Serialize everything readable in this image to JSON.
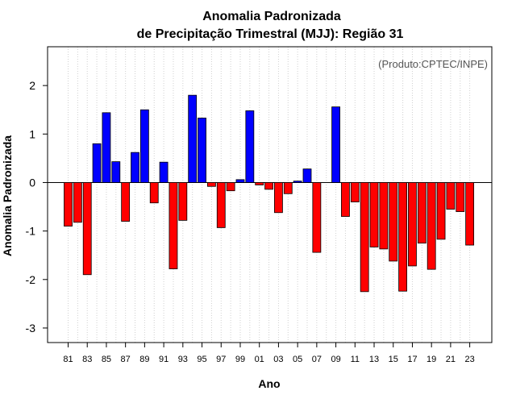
{
  "chart_data": {
    "type": "bar",
    "title": "Anomalia Padronizada",
    "subtitle": "de Precipitação Trimestral (MJJ): Região 31",
    "xlabel": "Ano",
    "ylabel": "Anomalia Padronizada",
    "credit": "(Produto:CPTEC/INPE)",
    "ylim": [
      -3.3,
      2.8
    ],
    "yticks": [
      -3,
      -2,
      -1,
      0,
      1,
      2
    ],
    "ytick_labels": [
      "-3",
      "-2",
      "-1",
      "0",
      "1",
      "2"
    ],
    "grid": "vertical dotted",
    "positive_color": "#0000ff",
    "negative_color": "#ff0000",
    "categories": [
      "81",
      "82",
      "83",
      "84",
      "85",
      "86",
      "87",
      "88",
      "89",
      "90",
      "91",
      "92",
      "93",
      "94",
      "95",
      "96",
      "97",
      "98",
      "99",
      "00",
      "01",
      "02",
      "03",
      "04",
      "05",
      "06",
      "07",
      "08",
      "09",
      "10",
      "11",
      "12",
      "13",
      "14",
      "15",
      "16",
      "17",
      "18",
      "19",
      "20",
      "21",
      "22",
      "23"
    ],
    "xtick_labels": [
      "81",
      "83",
      "85",
      "87",
      "89",
      "91",
      "93",
      "95",
      "97",
      "99",
      "01",
      "03",
      "05",
      "07",
      "09",
      "11",
      "13",
      "15",
      "17",
      "19",
      "21",
      "23"
    ],
    "values": [
      -0.9,
      -0.82,
      -1.9,
      0.8,
      1.44,
      0.43,
      -0.8,
      0.62,
      1.5,
      -0.42,
      0.42,
      -1.78,
      -0.78,
      1.8,
      1.33,
      -0.08,
      -0.93,
      -0.17,
      0.06,
      1.48,
      -0.05,
      -0.14,
      -0.62,
      -0.23,
      0.03,
      0.28,
      -1.44,
      0.0,
      1.56,
      -0.7,
      -0.4,
      -2.25,
      -1.33,
      -1.37,
      -1.62,
      -2.24,
      -1.72,
      -1.25,
      -1.79,
      -1.17,
      -0.55,
      -0.6,
      -1.29
    ]
  }
}
